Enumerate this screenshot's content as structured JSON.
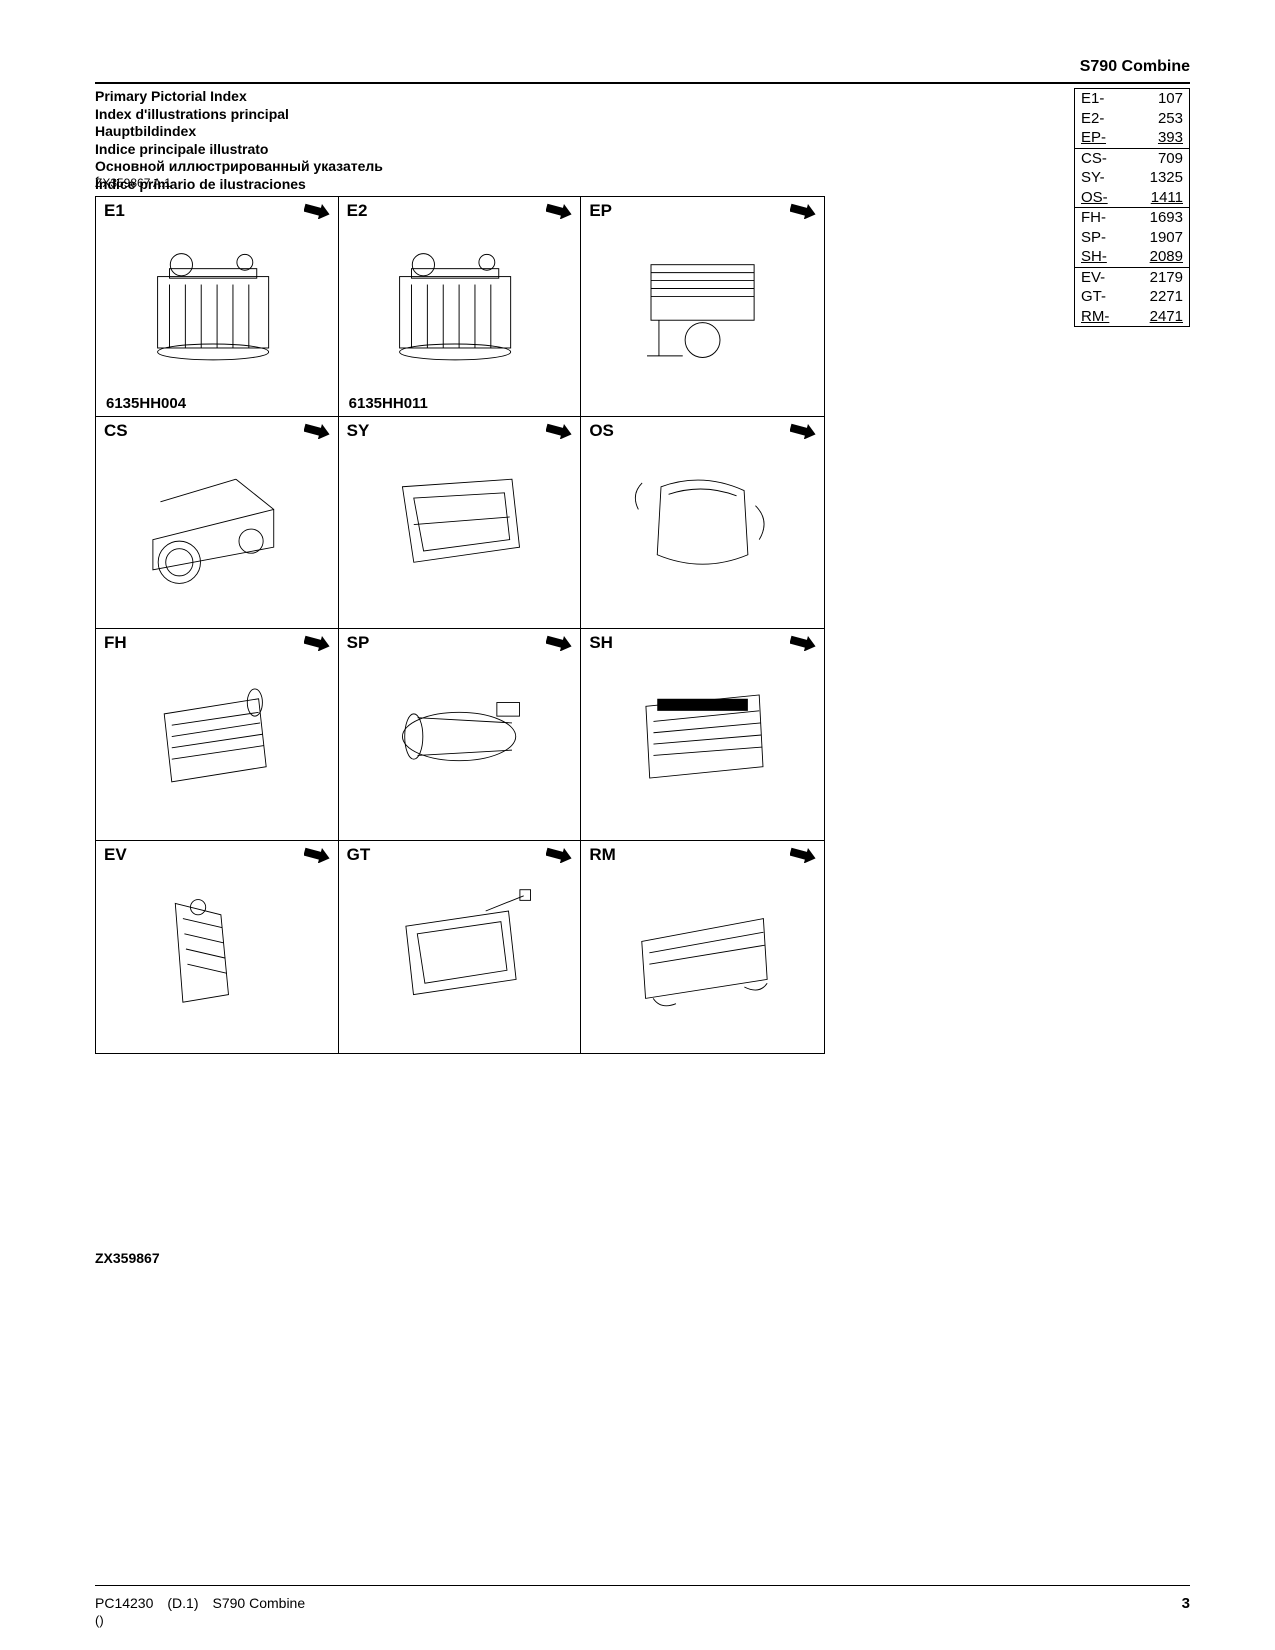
{
  "header": {
    "product": "S790  Combine"
  },
  "titles": [
    "Primary Pictorial Index",
    "Index d'illustrations principal",
    "Hauptbildindex",
    "Indice principale illustrato",
    "Основной иллюстрированный указатель",
    "Índice primario de ilustraciones"
  ],
  "ref_code": "ZX359867 A.1",
  "index_groups": [
    [
      {
        "code": "E1-",
        "page": "107",
        "underline": false
      },
      {
        "code": "E2-",
        "page": "253",
        "underline": false
      },
      {
        "code": "EP-",
        "page": "393",
        "underline": true
      }
    ],
    [
      {
        "code": "CS-",
        "page": "709",
        "underline": false
      },
      {
        "code": "SY-",
        "page": "1325",
        "underline": false
      },
      {
        "code": "OS-",
        "page": "1411",
        "underline": true
      }
    ],
    [
      {
        "code": "FH-",
        "page": "1693",
        "underline": false
      },
      {
        "code": "SP-",
        "page": "1907",
        "underline": false
      },
      {
        "code": "SH-",
        "page": "2089",
        "underline": true
      }
    ],
    [
      {
        "code": "EV-",
        "page": "2179",
        "underline": false
      },
      {
        "code": "GT-",
        "page": "2271",
        "underline": false
      },
      {
        "code": "RM-",
        "page": "2471",
        "underline": true
      }
    ]
  ],
  "cells": [
    {
      "code": "E1",
      "subtitle": "6135HH004",
      "kind": "engine"
    },
    {
      "code": "E2",
      "subtitle": "6135HH011",
      "kind": "engine"
    },
    {
      "code": "EP",
      "subtitle": "",
      "kind": "cooling"
    },
    {
      "code": "CS",
      "subtitle": "",
      "kind": "chassis"
    },
    {
      "code": "SY",
      "subtitle": "",
      "kind": "body"
    },
    {
      "code": "OS",
      "subtitle": "",
      "kind": "cab"
    },
    {
      "code": "FH",
      "subtitle": "",
      "kind": "feeder"
    },
    {
      "code": "SP",
      "subtitle": "",
      "kind": "separator"
    },
    {
      "code": "SH",
      "subtitle": "",
      "kind": "shoe"
    },
    {
      "code": "EV",
      "subtitle": "",
      "kind": "elevator"
    },
    {
      "code": "GT",
      "subtitle": "",
      "kind": "graintank"
    },
    {
      "code": "RM",
      "subtitle": "",
      "kind": "residue"
    }
  ],
  "bottom_ref": "ZX359867",
  "footer": {
    "doc": "PC14230",
    "rev": "(D.1)",
    "model": "S790 Combine",
    "sub": "()",
    "page": "3"
  },
  "style": {
    "arrow_fill": "#000000",
    "border_color": "#000000",
    "bg": "#ffffff",
    "font": "Arial",
    "title_fontsize": 14,
    "cell_code_fontsize": 17
  }
}
